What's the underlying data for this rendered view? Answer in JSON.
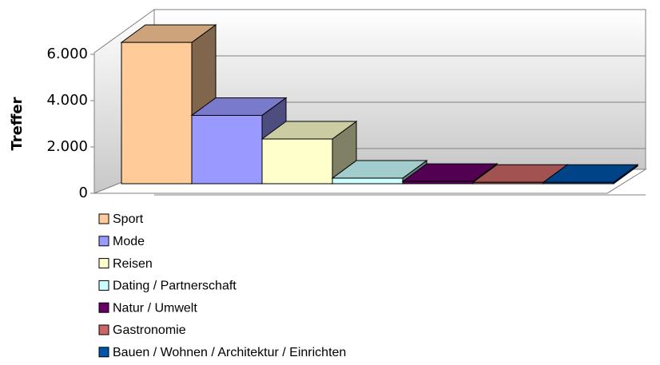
{
  "chart_data": {
    "type": "bar3d",
    "y_label": "Treffer",
    "ylim": [
      0,
      7000
    ],
    "yticks": [
      0,
      {
        "value": 2000,
        "label": "2.000"
      },
      {
        "value": 4000,
        "label": "4.000"
      },
      {
        "value": 6000,
        "label": "6.000"
      }
    ],
    "grid": true,
    "series": [
      {
        "name": "Sport",
        "color": "#ffcc99",
        "values": [
          6100
        ]
      },
      {
        "name": "Mode",
        "color": "#9999ff",
        "values": [
          2950
        ]
      },
      {
        "name": "Reisen",
        "color": "#ffffcc",
        "values": [
          1930
        ]
      },
      {
        "name": "Dating / Partnerschaft",
        "color": "#ccffff",
        "values": [
          240
        ]
      },
      {
        "name": "Natur / Umwelt",
        "color": "#660066",
        "values": [
          100
        ]
      },
      {
        "name": "Gastronomie",
        "color": "#cc6666",
        "values": [
          60
        ]
      },
      {
        "name": "Bauen / Wohnen / Architektur / Einrichten",
        "color": "#0055aa",
        "values": [
          60
        ]
      }
    ]
  }
}
